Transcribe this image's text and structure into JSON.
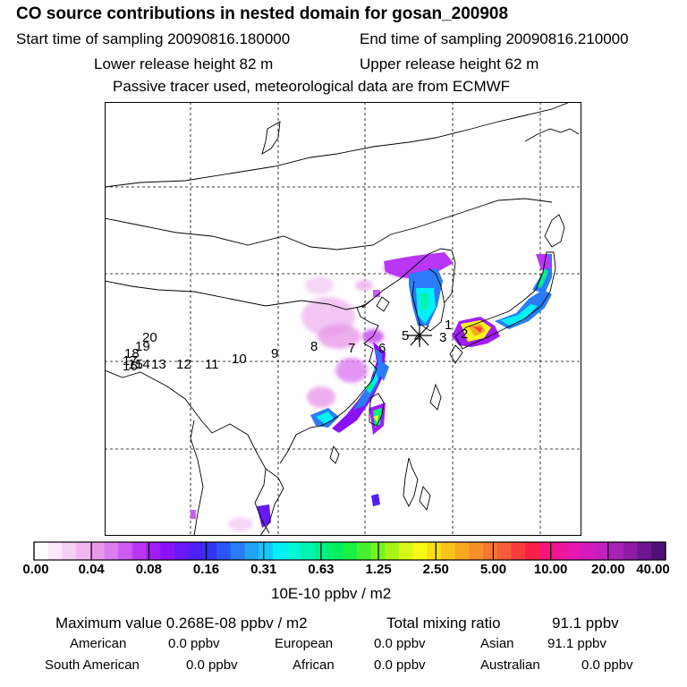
{
  "title": "CO  source contributions in nested domain for gosan_200908",
  "header": {
    "start_label": "Start time of sampling 20090816.180000",
    "end_label": "End time of sampling 20090816.210000",
    "lower_label": "Lower release height   82 m",
    "upper_label": "Upper release height   62 m",
    "tracer_note": "Passive tracer used, meteorological data are from ECMWF"
  },
  "trajectory_labels": [
    "1",
    "2",
    "3",
    "4",
    "5",
    "6",
    "7",
    "8",
    "9",
    "10",
    "11",
    "12",
    "13",
    "14",
    "15",
    "16",
    "17",
    "18",
    "19",
    "20"
  ],
  "colorbar": {
    "ticks": [
      "0.00",
      "0.04",
      "0.08",
      "0.16",
      "0.31",
      "0.63",
      "1.25",
      "2.50",
      "5.00",
      "10.00",
      "20.00",
      "40.00"
    ],
    "unit": "10E-10 ppbv / m2",
    "colors": [
      "#ffffff",
      "#fbe8fb",
      "#f5d0f5",
      "#efb6ef",
      "#e89ae8",
      "#dc7cf0",
      "#cc5af3",
      "#b936f6",
      "#a21cf8",
      "#8a12f8",
      "#6a18f8",
      "#4e1ef8",
      "#3232f8",
      "#2c56f8",
      "#2a7cf8",
      "#24a2f8",
      "#16c6f8",
      "#00f0f8",
      "#00f8d8",
      "#00f4b0",
      "#00f088",
      "#00f060",
      "#18f044",
      "#44f030",
      "#76f420",
      "#a8f418",
      "#d6f814",
      "#f8f814",
      "#f8e014",
      "#f8c41a",
      "#f8a820",
      "#f8902a",
      "#f87832",
      "#f85c38",
      "#f83c3e",
      "#f8204a",
      "#f81478",
      "#f0149a",
      "#e618b4",
      "#d41cbe",
      "#c020c0",
      "#a820b6",
      "#8c1ca6",
      "#6c1690",
      "#501078"
    ]
  },
  "footer": {
    "max_label": "Maximum value  0.268E-08 ppbv / m2",
    "total_label": "Total mixing ratio",
    "total_value": "91.1 ppbv",
    "regions": [
      {
        "name": "American",
        "value": "0.0 ppbv"
      },
      {
        "name": "European",
        "value": "0.0 ppbv"
      },
      {
        "name": "Asian",
        "value": "91.1 ppbv"
      },
      {
        "name": "South American",
        "value": "0.0 ppbv"
      },
      {
        "name": "African",
        "value": "0.0 ppbv"
      },
      {
        "name": "Australian",
        "value": "0.0 ppbv"
      }
    ]
  }
}
